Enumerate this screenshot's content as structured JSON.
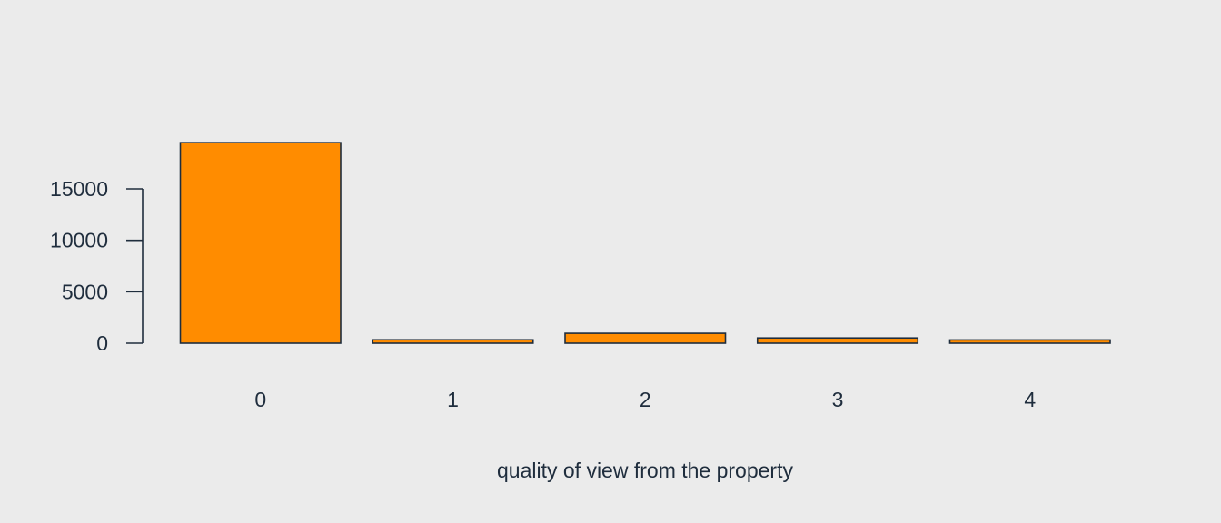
{
  "chart_data": {
    "type": "bar",
    "title": "",
    "xlabel": "quality of view from the property",
    "ylabel": "",
    "categories": [
      "0",
      "1",
      "2",
      "3",
      "4"
    ],
    "values": [
      19489,
      332,
      963,
      510,
      319
    ],
    "ylim": [
      0,
      20000
    ],
    "yticks": [
      0,
      5000,
      10000,
      15000
    ],
    "ytick_labels": [
      "0",
      "5000",
      "10000",
      "15000"
    ],
    "grid": false,
    "legend": "none",
    "colors": {
      "bar_fill": "#ff8c00",
      "bar_stroke": "#1f2d3d",
      "axis": "#1f2d3d",
      "text": "#1f2d3d",
      "background": "#ebebeb"
    }
  }
}
